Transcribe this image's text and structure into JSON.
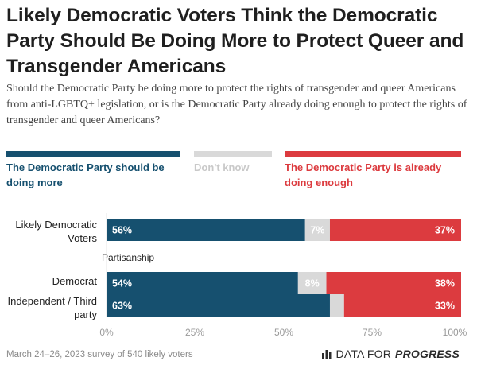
{
  "title": "Likely Democratic Voters Think the Democratic Party Should Be Doing More to Protect Queer and Transgender Americans",
  "subtitle": "Should the Democratic Party be doing more to protect the rights of transgender and queer Americans from anti-LGBTQ+ legislation, or is the Democratic Party already doing enough to protect the rights of transgender and queer Americans?",
  "footer": "March 24–26, 2023 survey of 540 likely voters",
  "brand": {
    "prefix": "DATA FOR",
    "emphasis": "PROGRESS",
    "icon": "bar-chart-icon"
  },
  "colors": {
    "more": "#16506f",
    "dont_know": "#d9d9d9",
    "enough": "#dc3b3f",
    "dont_know_text": "#c9c9c9"
  },
  "chart_data": {
    "type": "bar",
    "orientation": "horizontal",
    "stacked": true,
    "xlim": [
      0,
      100
    ],
    "x_ticks": [
      "0%",
      "25%",
      "50%",
      "75%",
      "100%"
    ],
    "legend_placement": "top",
    "series": [
      {
        "name": "The Democratic Party should be doing more",
        "key": "more"
      },
      {
        "name": "Don't know",
        "key": "dont_know"
      },
      {
        "name": "The Democratic Party is already doing enough",
        "key": "enough"
      }
    ],
    "groups": [
      {
        "label": "Likely Democratic Voters",
        "values": [
          56,
          7,
          37
        ],
        "labels": [
          "56%",
          "7%",
          "37%"
        ]
      },
      {
        "section": "Partisanship"
      },
      {
        "label": "Democrat",
        "values": [
          54,
          8,
          38
        ],
        "labels": [
          "54%",
          "8%",
          "38%"
        ]
      },
      {
        "label": "Independent / Third party",
        "values": [
          63,
          4,
          33
        ],
        "labels": [
          "63%",
          "",
          "33%"
        ]
      }
    ]
  }
}
